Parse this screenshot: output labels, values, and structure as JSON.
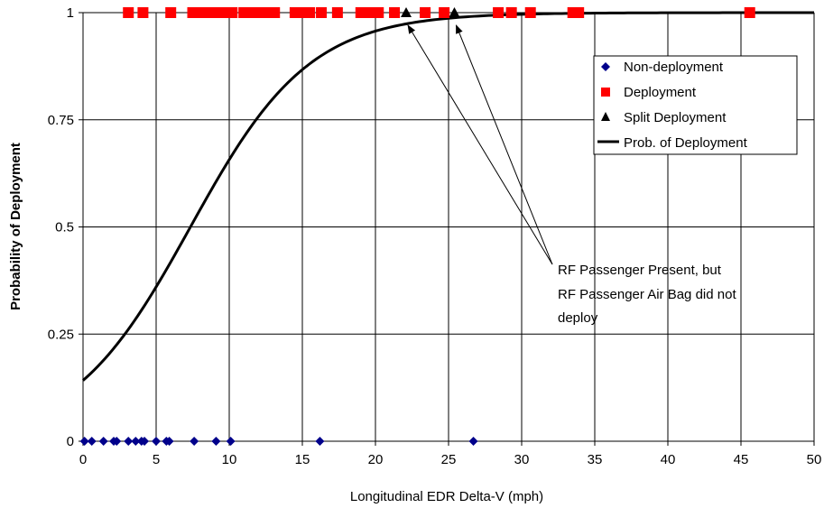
{
  "chart_data": {
    "type": "scatter",
    "xlabel": "Longitudinal EDR Delta-V (mph)",
    "ylabel": "Probability of Deployment",
    "xlim": [
      0,
      50
    ],
    "ylim": [
      0,
      1
    ],
    "x_ticks": [
      "0",
      "5",
      "10",
      "15",
      "20",
      "25",
      "30",
      "35",
      "40",
      "45",
      "50"
    ],
    "y_ticks": [
      "0",
      "0.25",
      "0.5",
      "0.75",
      "1"
    ],
    "grid": true,
    "legend_position": "top-right",
    "series": [
      {
        "name": "Non-deployment",
        "marker": "diamond",
        "color": "#00008B",
        "x": [
          0.1,
          0.6,
          1.4,
          2.1,
          2.3,
          3.1,
          3.6,
          4.0,
          4.2,
          5.0,
          5.7,
          5.9,
          7.6,
          9.1,
          10.1,
          16.2,
          26.7
        ],
        "y": [
          0,
          0,
          0,
          0,
          0,
          0,
          0,
          0,
          0,
          0,
          0,
          0,
          0,
          0,
          0,
          0,
          0
        ]
      },
      {
        "name": "Deployment",
        "marker": "square",
        "color": "#FF0000",
        "x": [
          3.1,
          4.1,
          6.0,
          7.5,
          8.0,
          8.5,
          9.0,
          9.6,
          10.2,
          11.0,
          11.6,
          12.1,
          12.6,
          13.1,
          14.5,
          15.0,
          15.5,
          16.3,
          17.4,
          19.0,
          19.6,
          20.2,
          21.3,
          23.4,
          24.7,
          28.4,
          29.3,
          30.6,
          33.5,
          33.9,
          45.6
        ],
        "y": [
          1,
          1,
          1,
          1,
          1,
          1,
          1,
          1,
          1,
          1,
          1,
          1,
          1,
          1,
          1,
          1,
          1,
          1,
          1,
          1,
          1,
          1,
          1,
          1,
          1,
          1,
          1,
          1,
          1,
          1,
          1
        ]
      },
      {
        "name": "Split Deployment",
        "marker": "triangle",
        "color": "#000000",
        "x": [
          22.1,
          25.4
        ],
        "y": [
          1,
          1
        ]
      },
      {
        "name": "Prob. of Deployment",
        "type": "line",
        "color": "#000000",
        "curve": "logistic",
        "intercept": -1.8,
        "slope": 0.245
      }
    ],
    "annotations": [
      {
        "lines": [
          "RF Passenger Present, but",
          "RF Passenger Air Bag did not",
          "deploy"
        ],
        "arrow_targets": [
          [
            22.1,
            1
          ],
          [
            25.4,
            1
          ]
        ]
      }
    ]
  }
}
